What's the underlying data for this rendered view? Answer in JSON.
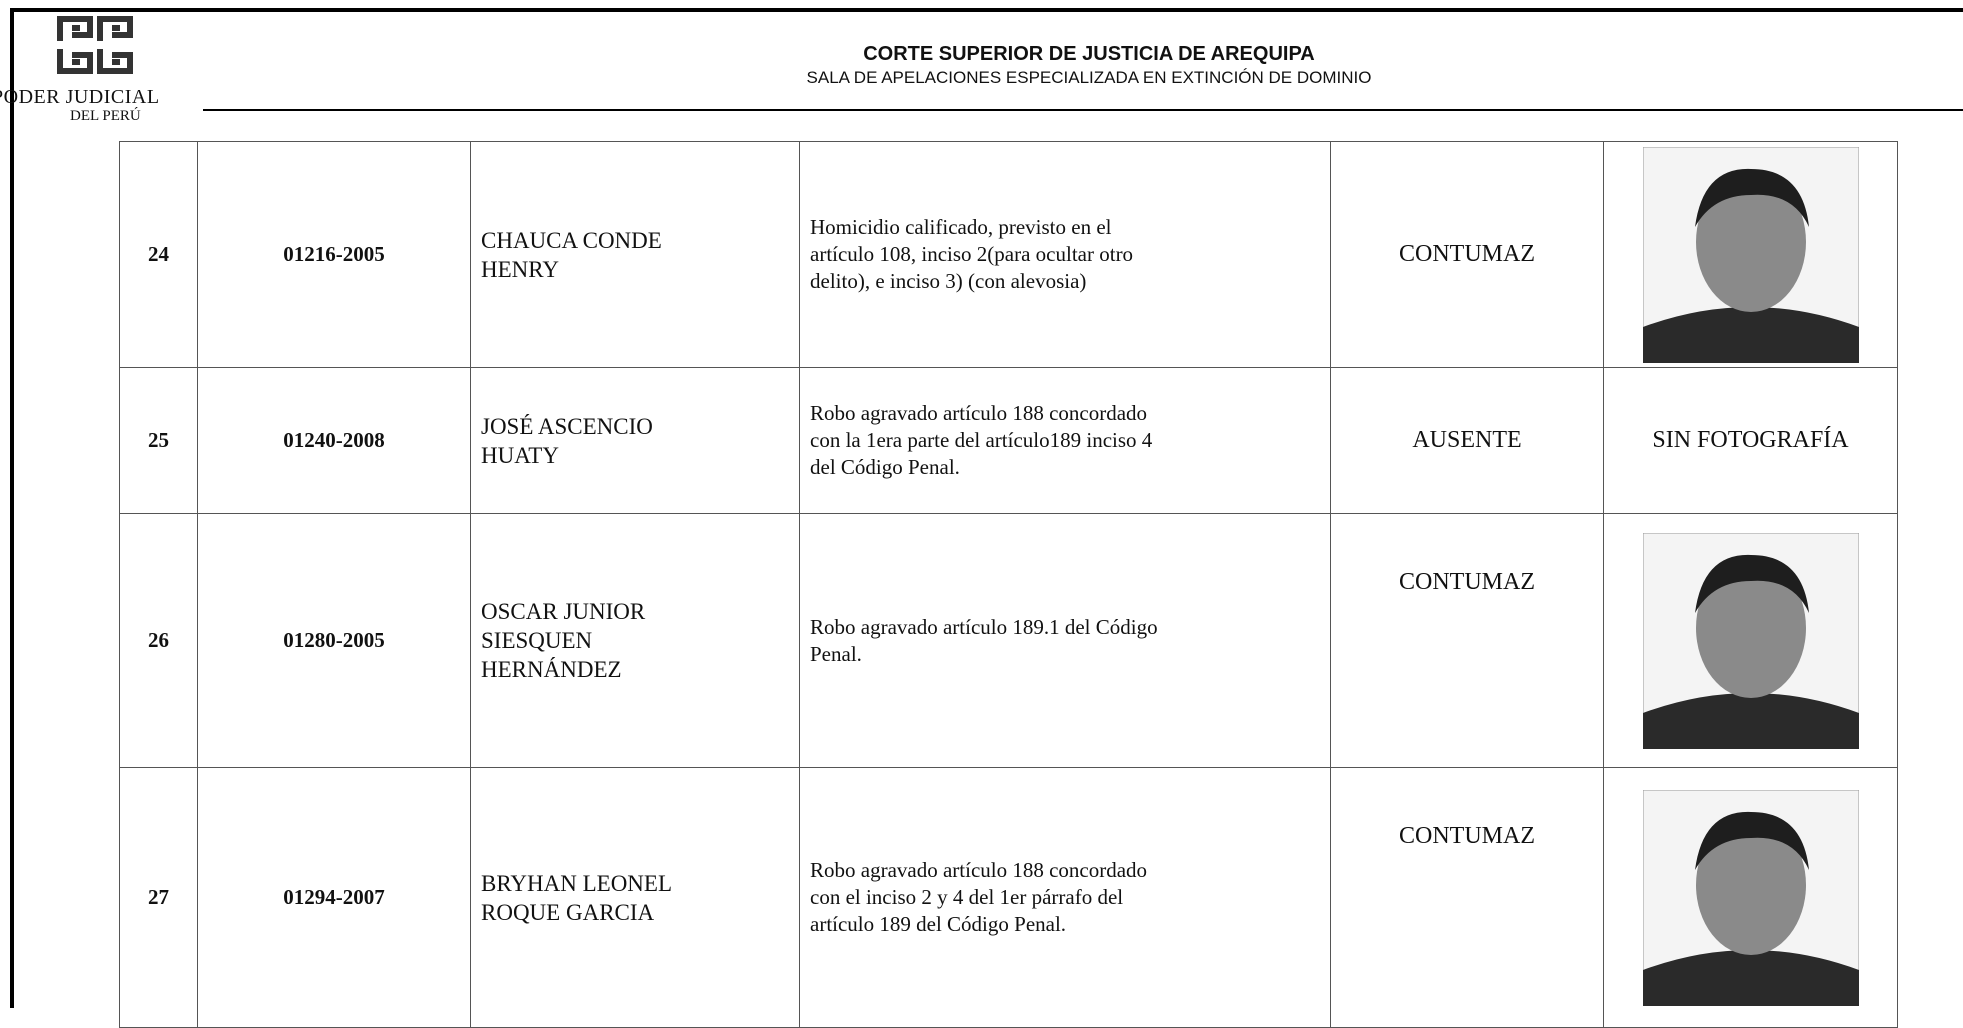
{
  "header": {
    "logo_line1": "PODER JUDICIAL",
    "logo_line2": "DEL PERÚ",
    "title": "CORTE SUPERIOR DE JUSTICIA DE AREQUIPA",
    "subtitle": "SALA DE APELACIONES ESPECIALIZADA EN EXTINCIÓN DE DOMINIO"
  },
  "table": {
    "rows": [
      {
        "number": "24",
        "case": "01216-2005",
        "name": [
          "CHAUCA CONDE",
          "HENRY"
        ],
        "offense": [
          "Homicidio calificado, previsto en el",
          "artículo 108, inciso 2(para ocultar otro",
          "delito), e inciso 3) (con alevosia)"
        ],
        "status": "CONTUMAZ"
      },
      {
        "number": "25",
        "case": "01240-2008",
        "name": [
          "JOSÉ ASCENCIO",
          "HUATY"
        ],
        "offense": [
          "Robo agravado artículo 188 concordado",
          "con la 1era parte del artículo189 inciso 4",
          "del Código Penal."
        ],
        "status": "AUSENTE",
        "photo": "SIN FOTOGRAFÍA"
      },
      {
        "number": "26",
        "case": "01280-2005",
        "name": [
          "OSCAR JUNIOR",
          "SIESQUEN",
          "HERNÁNDEZ"
        ],
        "offense": [
          "Robo agravado artículo 189.1 del Código",
          "Penal."
        ],
        "status": "CONTUMAZ"
      },
      {
        "number": "27",
        "case": "01294-2007",
        "name": [
          "BRYHAN LEONEL",
          "ROQUE GARCIA"
        ],
        "offense": [
          "Robo agravado artículo 188 concordado",
          "con el inciso 2 y 4 del 1er párrafo del",
          "artículo 189 del Código Penal."
        ],
        "status": "CONTUMAZ"
      }
    ]
  }
}
